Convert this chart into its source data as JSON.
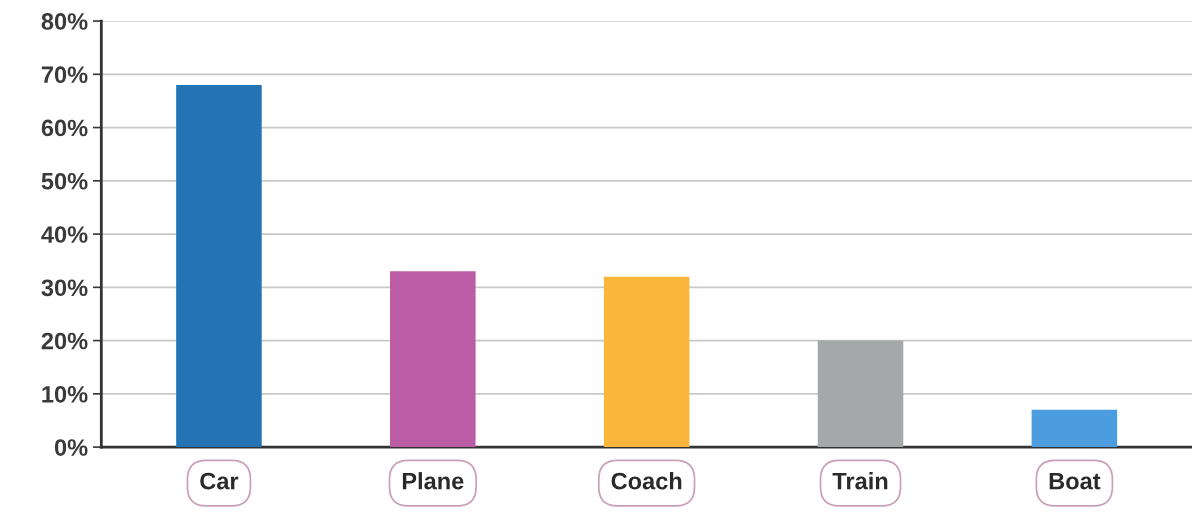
{
  "chart_data": {
    "type": "bar",
    "categories": [
      "Car",
      "Plane",
      "Coach",
      "Train",
      "Boat"
    ],
    "values": [
      68,
      33,
      32,
      20,
      7
    ],
    "colors": [
      "#2474b5",
      "#bd5ca6",
      "#f9b63a",
      "#a5a8a9",
      "#4b9de0"
    ],
    "ylim": [
      0,
      80
    ],
    "yticks": [
      {
        "value": 0,
        "label": "0%"
      },
      {
        "value": 10,
        "label": "10%"
      },
      {
        "value": 20,
        "label": "20%"
      },
      {
        "value": 30,
        "label": "30%"
      },
      {
        "value": 40,
        "label": "40%"
      },
      {
        "value": 50,
        "label": "50%"
      },
      {
        "value": 60,
        "label": "60%"
      },
      {
        "value": 70,
        "label": "70%"
      },
      {
        "value": 80,
        "label": "80%"
      }
    ],
    "grid": "y"
  }
}
